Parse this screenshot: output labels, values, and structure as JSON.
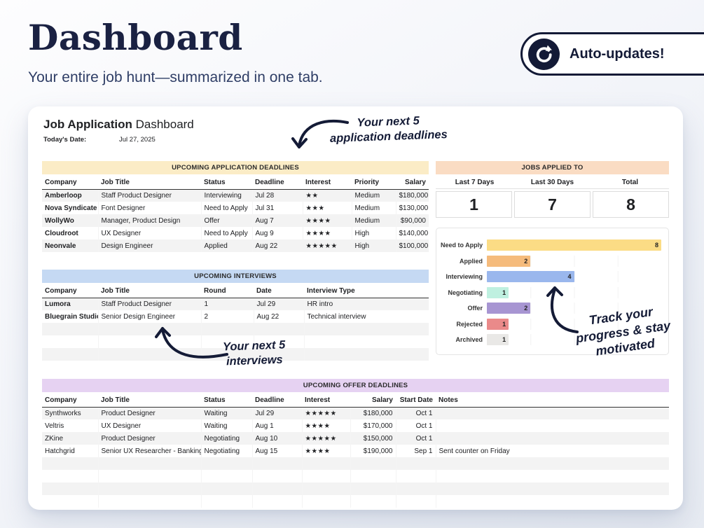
{
  "page": {
    "title": "Dashboard",
    "subtitle": "Your entire job hunt—summarized in one tab.",
    "badge_label": "Auto-updates!"
  },
  "card": {
    "title_bold": "Job Application",
    "title_rest": " Dashboard",
    "date_label": "Today's Date:",
    "date_value": "Jul 27, 2025"
  },
  "annotations": {
    "deadlines_note": "Your next 5\napplication deadlines",
    "interviews_note": "Your next 5\ninterviews",
    "progress_note": "Track your\nprogress & stay\nmotivated"
  },
  "colors": {
    "navy": "#1a2142",
    "stripe": "#f3f3f3",
    "applications_header": "#fbecc6",
    "jobs_applied_header": "#fadcc3",
    "interviews_header": "#c5d9f3",
    "offers_header": "#e6d2f2"
  },
  "jobs_applied": {
    "title": "JOBS APPLIED TO",
    "header_bg": "#fadcc3",
    "columns": [
      "Last 7 Days",
      "Last 30 Days",
      "Total"
    ],
    "values": [
      "1",
      "7",
      "8"
    ]
  },
  "tables": {
    "applications": {
      "title": "UPCOMING APPLICATION DEADLINES",
      "header_bg": "#fbecc6",
      "columns": [
        "Company",
        "Job Title",
        "Status",
        "Deadline",
        "Interest",
        "Priority",
        "Salary"
      ],
      "widths": [
        80,
        147,
        73,
        72,
        70,
        63,
        47
      ],
      "aligns": [
        "l",
        "l",
        "l",
        "l",
        "l",
        "l",
        "r"
      ],
      "bold_first": true,
      "star_col": 4,
      "empty_rows": 0,
      "rows": [
        [
          "Amberloop",
          "Staff Product Designer",
          "Interviewing",
          "Jul 28",
          "★★",
          "Medium",
          "$180,000"
        ],
        [
          "Nova Syndicate",
          "Font Designer",
          "Need to Apply",
          "Jul 31",
          "★★★",
          "Medium",
          "$130,000"
        ],
        [
          "WollyWo",
          "Manager, Product Design",
          "Offer",
          "Aug 7",
          "★★★★",
          "Medium",
          "$90,000"
        ],
        [
          "Cloudroot",
          "UX Designer",
          "Need to Apply",
          "Aug 9",
          "★★★★",
          "High",
          "$140,000"
        ],
        [
          "Neonvale",
          "Design Engineer",
          "Applied",
          "Aug 22",
          "★★★★★",
          "High",
          "$100,000"
        ]
      ]
    },
    "interviews": {
      "title": "UPCOMING INTERVIEWS",
      "header_bg": "#c5d9f3",
      "columns": [
        "Company",
        "Job Title",
        "Round",
        "Date",
        "Interview Type"
      ],
      "widths": [
        80,
        147,
        75,
        72,
        178
      ],
      "aligns": [
        "l",
        "l",
        "l",
        "l",
        "l"
      ],
      "bold_first": true,
      "star_col": -1,
      "empty_rows": 3,
      "rows": [
        [
          "Lumora",
          "Staff Product Designer",
          "1",
          "Jul 29",
          "HR intro"
        ],
        [
          "Bluegrain Studio",
          "Senior Design Engineer",
          "2",
          "Aug 22",
          "Technical interview"
        ]
      ]
    },
    "offers": {
      "title": "UPCOMING OFFER DEADLINES",
      "header_bg": "#e6d2f2",
      "columns": [
        "Company",
        "Job Title",
        "Status",
        "Deadline",
        "Interest",
        "Salary",
        "Start Date",
        "Notes"
      ],
      "widths": [
        80,
        147,
        73,
        71,
        69,
        65,
        57,
        333
      ],
      "aligns": [
        "l",
        "l",
        "l",
        "l",
        "l",
        "r",
        "r",
        "l"
      ],
      "bold_first": false,
      "star_col": 4,
      "empty_rows": 4,
      "rows": [
        [
          "Synthworks",
          "Product Designer",
          "Waiting",
          "Jul 29",
          "★★★★★",
          "$180,000",
          "Oct 1",
          ""
        ],
        [
          "Veltris",
          "UX Designer",
          "Waiting",
          "Aug 1",
          "★★★★",
          "$170,000",
          "Oct 1",
          ""
        ],
        [
          "ZKine",
          "Product Designer",
          "Negotiating",
          "Aug 10",
          "★★★★★",
          "$150,000",
          "Oct 1",
          ""
        ],
        [
          "Hatchgrid",
          "Senior UX Researcher - Banking",
          "Negotiating",
          "Aug 15",
          "★★★★",
          "$190,000",
          "Sep 1",
          "Sent counter on Friday"
        ]
      ]
    }
  },
  "chart_data": {
    "type": "bar",
    "orientation": "horizontal",
    "title": "",
    "categories": [
      "Need to Apply",
      "Applied",
      "Interviewing",
      "Negotiating",
      "Offer",
      "Rejected",
      "Archived"
    ],
    "values": [
      8,
      2,
      4,
      1,
      2,
      1,
      1
    ],
    "colors": [
      "#fbdc85",
      "#f5bb7c",
      "#9ab7ed",
      "#bff0e0",
      "#a795d2",
      "#ea8a8a",
      "#e9e8e6"
    ],
    "xlim": [
      0,
      8
    ],
    "show_value_labels": true,
    "grid": true,
    "legend": false
  }
}
